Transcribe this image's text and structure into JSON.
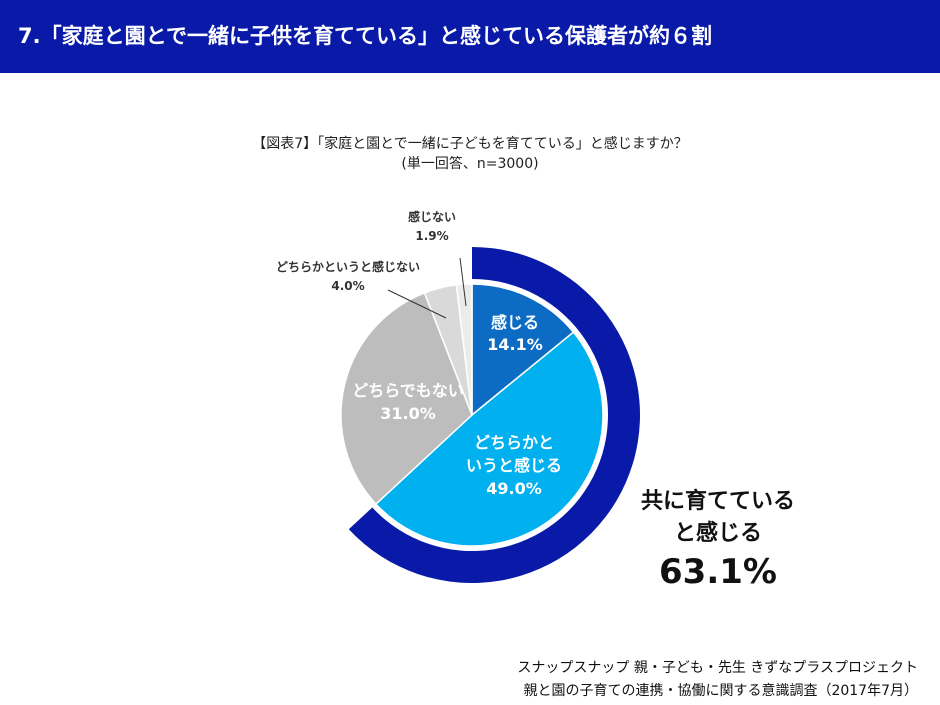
{
  "header": {
    "title": "7.「家庭と園とで一緒に子供を育てている」と感じている保護者が約６割"
  },
  "chart_title": {
    "line1": "【図表7】「家庭と園とで一緒に子どもを育てている」と感じますか？",
    "line2": "(単一回答、n=3000)"
  },
  "chart_data": {
    "type": "pie",
    "title": "【図表7】「家庭と園とで一緒に子どもを育てている」と感じますか？",
    "subtitle": "(単一回答、n=3000)",
    "slices": [
      {
        "label": "感じる",
        "value": 14.1,
        "value_text": "14.1%",
        "color": "#0c6cc4"
      },
      {
        "label": "どちらかというと感じる",
        "value": 49.0,
        "value_text": "49.0%",
        "color": "#00b0ef"
      },
      {
        "label": "どちらでもない",
        "value": 31.0,
        "value_text": "31.0%",
        "color": "#bdbdbd"
      },
      {
        "label": "どちらかというと感じない",
        "value": 4.0,
        "value_text": "4.0%",
        "color": "#d9d9d9"
      },
      {
        "label": "感じない",
        "value": 1.9,
        "value_text": "1.9%",
        "color": "#ebebeb"
      }
    ],
    "aggregate": {
      "label_line1": "共に育てている",
      "label_line2": "と感じる",
      "value": 63.1,
      "value_text": "63.1%",
      "color": "#0a1aa8"
    }
  },
  "labels": {
    "kanjiru": {
      "name": "感じる",
      "value": "14.1%"
    },
    "dochiraka_kanjiru": {
      "name_line1": "どちらかと",
      "name_line2": "いうと感じる",
      "value": "49.0%"
    },
    "dochirademo": {
      "name": "どちらでもない",
      "value": "31.0%"
    },
    "dochiraka_kanjinai": {
      "name": "どちらかというと感じない",
      "value": "4.0%"
    },
    "kanjinai": {
      "name": "感じない",
      "value": "1.9%"
    }
  },
  "footer": {
    "line1": "スナップスナップ 親・子ども・先生 きずなプラスプロジェクト",
    "line2": "親と園の子育ての連携・協働に関する意識調査（2017年7月）"
  }
}
